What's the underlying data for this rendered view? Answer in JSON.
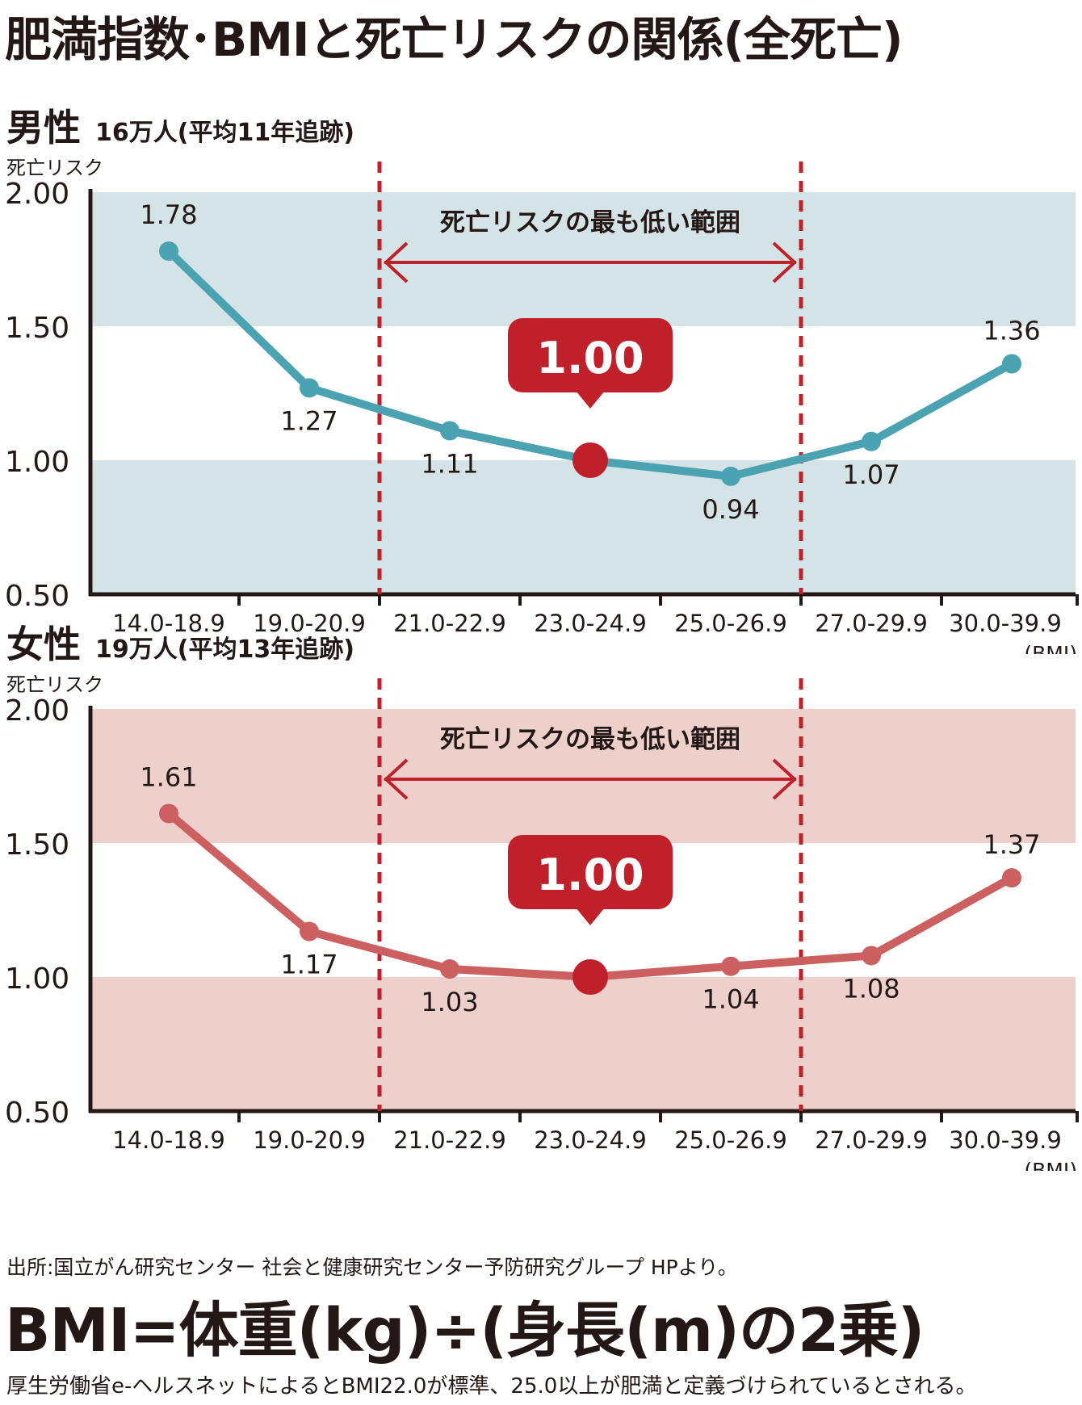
{
  "title": "肥満指数･BMIと死亡リスクの関係(全死亡)",
  "chart_data": [
    {
      "type": "line",
      "panel_label": "男性",
      "sample_note": "16万人(平均11年追跡)",
      "ylabel": "死亡リスク",
      "xlabel": "(BMI)",
      "ylim": [
        0.5,
        2.0
      ],
      "yticks": [
        "2.00",
        "1.50",
        "1.00",
        "0.50"
      ],
      "categories": [
        "14.0-18.9",
        "19.0-20.9",
        "21.0-22.9",
        "23.0-24.9",
        "25.0-26.9",
        "27.0-29.9",
        "30.0-39.9"
      ],
      "values": [
        1.78,
        1.27,
        1.11,
        1.0,
        0.94,
        1.07,
        1.36
      ],
      "value_labels": [
        "1.78",
        "1.27",
        "1.11",
        "1.00",
        "0.94",
        "1.07",
        "1.36"
      ],
      "range_label": "死亡リスクの最も低い範囲",
      "range_categories": [
        "21.0-22.9",
        "25.0-26.9"
      ],
      "highlight_label": "1.00",
      "highlight_value": 1.0,
      "line_color": "#4ba3b2",
      "band_color": "#d4e3e6",
      "accent_color": "#c0202a"
    },
    {
      "type": "line",
      "panel_label": "女性",
      "sample_note": "19万人(平均13年追跡)",
      "ylabel": "死亡リスク",
      "xlabel": "(BMI)",
      "ylim": [
        0.5,
        2.0
      ],
      "yticks": [
        "2.00",
        "1.50",
        "1.00",
        "0.50"
      ],
      "categories": [
        "14.0-18.9",
        "19.0-20.9",
        "21.0-22.9",
        "23.0-24.9",
        "25.0-26.9",
        "27.0-29.9",
        "30.0-39.9"
      ],
      "values": [
        1.61,
        1.17,
        1.03,
        1.0,
        1.04,
        1.08,
        1.37
      ],
      "value_labels": [
        "1.61",
        "1.17",
        "1.03",
        "1.00",
        "1.04",
        "1.08",
        "1.37"
      ],
      "range_label": "死亡リスクの最も低い範囲",
      "range_categories": [
        "21.0-22.9",
        "25.0-26.9"
      ],
      "highlight_label": "1.00",
      "highlight_value": 1.0,
      "line_color": "#cc5f5f",
      "band_color": "#edd0cb",
      "accent_color": "#c0202a"
    }
  ],
  "source": "出所:国立がん研究センター 社会と健康研究センター予防研究グループ HPより。",
  "formula": "BMI=体重(kg)÷(身長(m)の2乗)",
  "footnote": "厚生労働省e-ヘルスネットによるとBMI22.0が標準、25.0以上が肥満と定義づけられているとされる。"
}
